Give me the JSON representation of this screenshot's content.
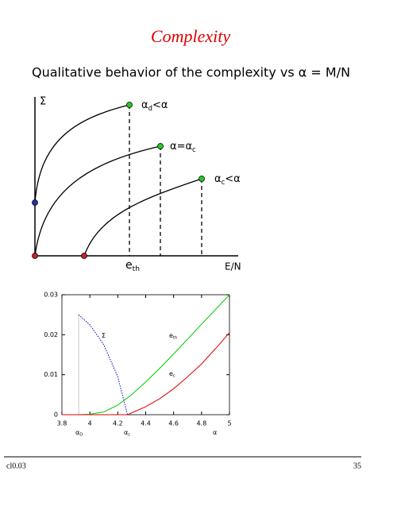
{
  "title": "Complexity",
  "subtitle": "Qualitative behavior of the complexity vs α = M/N",
  "diagram": {
    "y_label": "Σ",
    "x_label": "E/N",
    "curves": [
      {
        "main": "α",
        "sub": "d",
        "rest": "<α"
      },
      {
        "main": "α=α",
        "sub": "c",
        "rest": ""
      },
      {
        "main": "α",
        "sub": "c",
        "rest": "<α"
      }
    ],
    "marker": {
      "main": "e",
      "sub": "th"
    }
  },
  "chart_data": {
    "type": "line",
    "xlim": [
      3.8,
      5
    ],
    "xticks": [
      3.8,
      4,
      4.2,
      4.4,
      4.6,
      4.8,
      5
    ],
    "ylim": [
      0,
      0.03
    ],
    "yticks": [
      0,
      0.01,
      0.02,
      0.03
    ],
    "series": [
      {
        "name": "Σ",
        "color": "#0000cc",
        "x": [
          3.92,
          4.0,
          4.1,
          4.2,
          4.27
        ],
        "values": [
          0.025,
          0.0225,
          0.0175,
          0.0095,
          0
        ]
      },
      {
        "name": "e_th",
        "color": "#00cc00",
        "x": [
          3.8,
          3.92,
          4.0,
          4.1,
          4.2,
          4.3,
          4.4,
          4.5,
          4.6,
          4.7,
          4.8,
          4.9,
          5.0
        ],
        "values": [
          0,
          0,
          0.0001,
          0.0007,
          0.0024,
          0.005,
          0.0082,
          0.0116,
          0.0152,
          0.0189,
          0.0226,
          0.0263,
          0.03
        ]
      },
      {
        "name": "e_c",
        "color": "#dd0000",
        "x": [
          3.8,
          4.27,
          4.4,
          4.5,
          4.6,
          4.7,
          4.8,
          4.9,
          5.0
        ],
        "values": [
          0,
          0,
          0.002,
          0.004,
          0.0065,
          0.0095,
          0.0127,
          0.0165,
          0.0205
        ]
      }
    ],
    "annotations": [
      {
        "main": "Σ",
        "sub": ""
      },
      {
        "main": "e",
        "sub": "th"
      },
      {
        "main": "e",
        "sub": "c"
      }
    ],
    "x_marks": [
      {
        "main": "α",
        "sub": "D"
      },
      {
        "main": "α",
        "sub": "c"
      },
      {
        "main": "α",
        "sub": ""
      }
    ]
  },
  "footer": {
    "left": "cl0.03",
    "right": "35"
  }
}
